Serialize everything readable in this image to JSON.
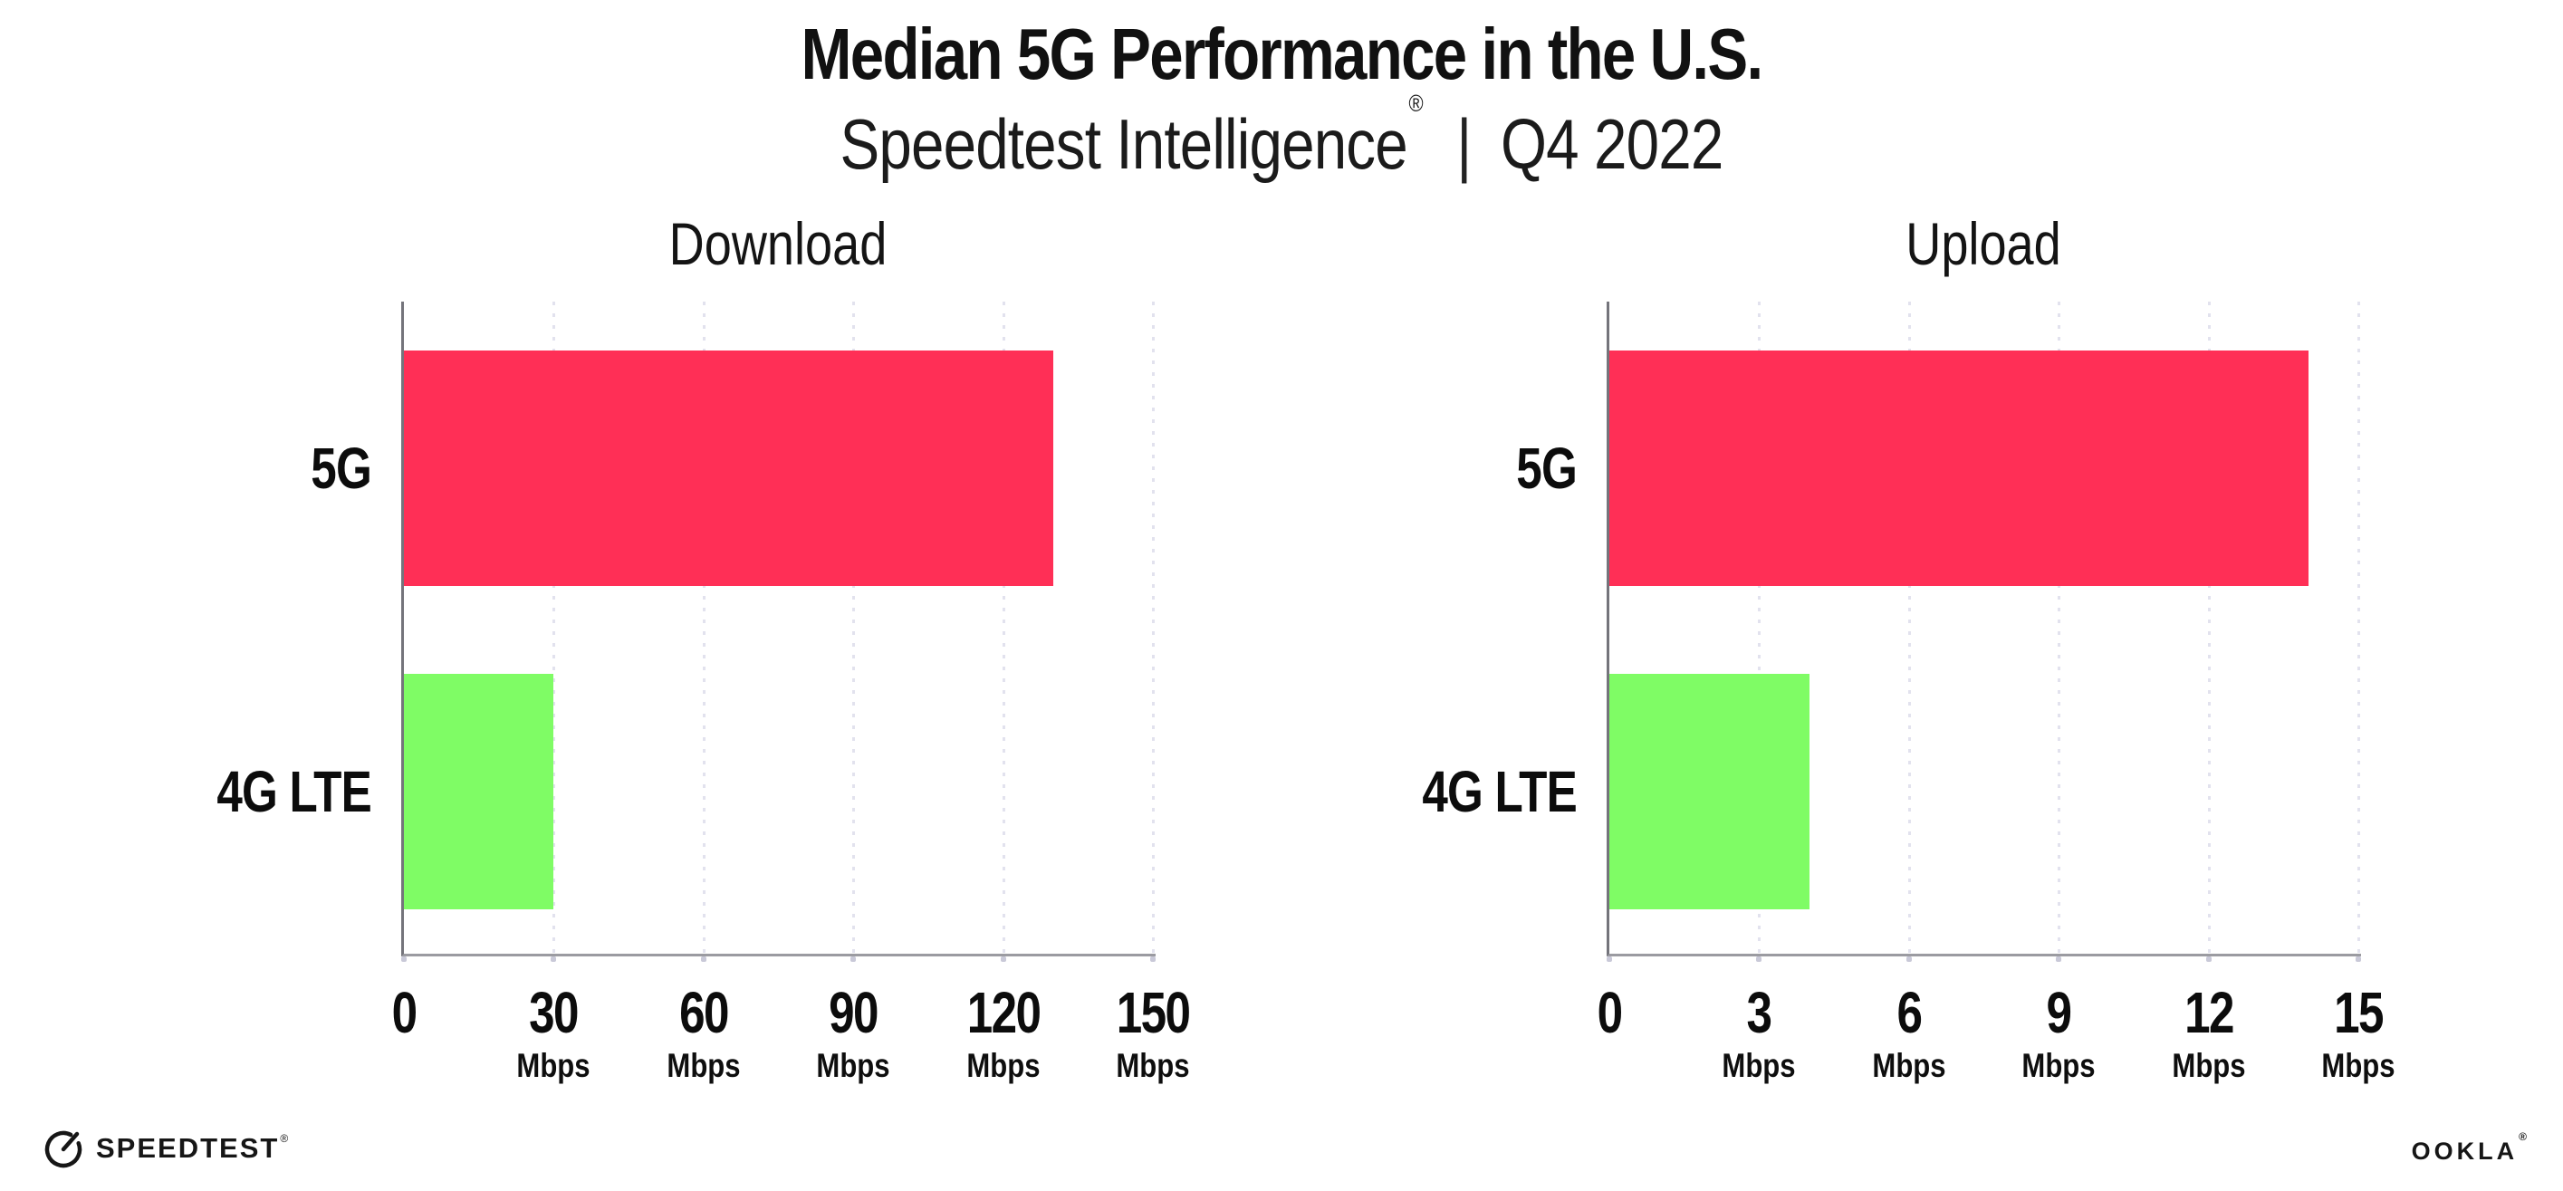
{
  "header": {
    "title": "Median 5G Performance in the U.S.",
    "subtitle": {
      "brand": "Speedtest Intelligence",
      "registered_mark": "®",
      "separator": "|",
      "period": "Q4 2022"
    }
  },
  "colors": {
    "bar_5g": "#FF2F56",
    "bar_4g_lte": "#7FFC65",
    "y_axis_line": "#74747B",
    "x_axis_line": "#9B9BA1",
    "gridline_dots": "#E2E2EE",
    "text": "#111111",
    "background": "#FFFFFF"
  },
  "icons": {
    "speedtest": "gauge-icon"
  },
  "footer": {
    "speedtest_logo_text": "SPEEDTEST",
    "speedtest_trademark": "®",
    "ookla_logo_text": "OOKLA",
    "ookla_trademark": "®"
  },
  "chart_data": [
    {
      "type": "bar",
      "orientation": "horizontal",
      "title": "Download",
      "categories": [
        "5G",
        "4G LTE"
      ],
      "values": [
        130,
        30
      ],
      "value_unit": "Mbps",
      "xlim": [
        0,
        150
      ],
      "xticks": [
        0,
        30,
        60,
        90,
        120,
        150
      ],
      "xtick_unit": "Mbps",
      "grid": "vertical-dotted",
      "legend": "none",
      "bar_colors": [
        "#FF2F56",
        "#7FFC65"
      ]
    },
    {
      "type": "bar",
      "orientation": "horizontal",
      "title": "Upload",
      "categories": [
        "5G",
        "4G LTE"
      ],
      "values": [
        14,
        4
      ],
      "value_unit": "Mbps",
      "xlim": [
        0,
        15
      ],
      "xticks": [
        0,
        3,
        6,
        9,
        12,
        15
      ],
      "xtick_unit": "Mbps",
      "grid": "vertical-dotted",
      "legend": "none",
      "bar_colors": [
        "#FF2F56",
        "#7FFC65"
      ]
    }
  ]
}
